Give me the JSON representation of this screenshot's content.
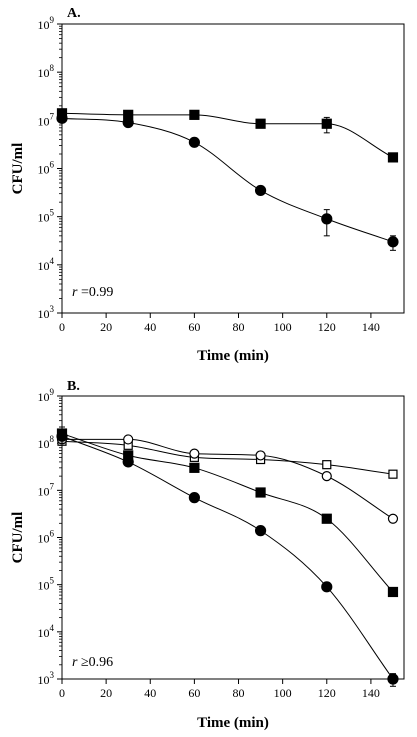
{
  "chart_data": [
    {
      "type": "scatter",
      "panel_label": "A.",
      "xlabel": "Time (min)",
      "ylabel": "CFU/ml",
      "yscale": "log",
      "xlim": [
        0,
        155
      ],
      "ylim": [
        1000,
        1000000000
      ],
      "x_ticks": [
        "0",
        "20",
        "40",
        "60",
        "80",
        "100",
        "120",
        "140"
      ],
      "y_ticks": [
        {
          "base": "10",
          "exp": "3"
        },
        {
          "base": "10",
          "exp": "4"
        },
        {
          "base": "10",
          "exp": "5"
        },
        {
          "base": "10",
          "exp": "6"
        },
        {
          "base": "10",
          "exp": "7"
        },
        {
          "base": "10",
          "exp": "8"
        },
        {
          "base": "10",
          "exp": "9"
        }
      ],
      "annotation": {
        "var": "r",
        "rest": " =0.99"
      },
      "series": [
        {
          "marker": "square-filled",
          "x": [
            0,
            30,
            60,
            90,
            120,
            150
          ],
          "y": [
            14000000,
            13000000,
            13000000,
            8500000,
            8500000,
            1700000
          ],
          "err": [
            0,
            0,
            0,
            0,
            3000000,
            0
          ]
        },
        {
          "marker": "circle-filled",
          "x": [
            0,
            30,
            60,
            90,
            120,
            150
          ],
          "y": [
            11000000,
            9000000,
            3500000,
            350000,
            90000,
            30000
          ],
          "err": [
            0,
            0,
            0,
            0,
            50000,
            10000
          ]
        }
      ]
    },
    {
      "type": "scatter",
      "panel_label": "B.",
      "xlabel": "Time (min)",
      "ylabel": "CFU/ml",
      "yscale": "log",
      "xlim": [
        0,
        155
      ],
      "ylim": [
        1000,
        1000000000
      ],
      "x_ticks": [
        "0",
        "20",
        "40",
        "60",
        "80",
        "100",
        "120",
        "140"
      ],
      "y_ticks": [
        {
          "base": "10",
          "exp": "3"
        },
        {
          "base": "10",
          "exp": "4"
        },
        {
          "base": "10",
          "exp": "5"
        },
        {
          "base": "10",
          "exp": "6"
        },
        {
          "base": "10",
          "exp": "7"
        },
        {
          "base": "10",
          "exp": "8"
        },
        {
          "base": "10",
          "exp": "9"
        }
      ],
      "annotation": {
        "var": "r",
        "rest": " ≥0.96"
      },
      "series": [
        {
          "marker": "square-open",
          "x": [
            0,
            30,
            60,
            90,
            120,
            150
          ],
          "y": [
            110000000,
            90000000,
            50000000,
            45000000,
            35000000,
            22000000
          ],
          "err": [
            0,
            0,
            0,
            0,
            0,
            0
          ]
        },
        {
          "marker": "circle-open",
          "x": [
            0,
            30,
            60,
            90,
            120,
            150
          ],
          "y": [
            120000000,
            120000000,
            60000000,
            55000000,
            20000000,
            2500000
          ],
          "err": [
            0,
            0,
            0,
            0,
            0,
            0
          ]
        },
        {
          "marker": "square-filled",
          "x": [
            0,
            30,
            60,
            90,
            120,
            150
          ],
          "y": [
            160000000,
            55000000,
            30000000,
            9000000,
            2500000,
            70000
          ],
          "err": [
            60000000,
            0,
            0,
            0,
            0,
            0
          ]
        },
        {
          "marker": "circle-filled",
          "x": [
            0,
            30,
            60,
            90,
            120,
            150
          ],
          "y": [
            140000000,
            40000000,
            7000000,
            1400000,
            90000,
            1000
          ],
          "err": [
            0,
            0,
            0,
            0,
            0,
            300
          ]
        }
      ]
    }
  ]
}
